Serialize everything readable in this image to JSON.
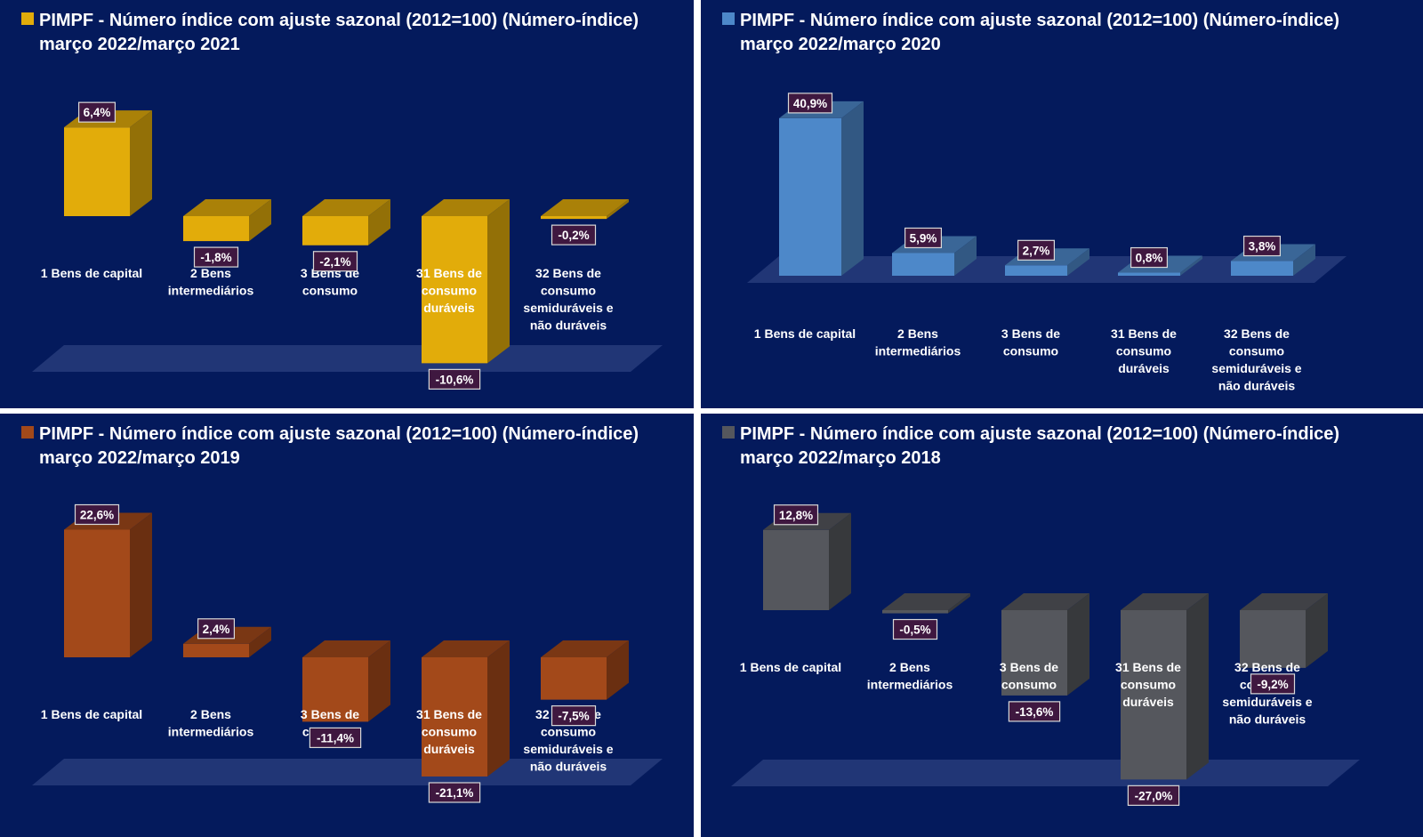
{
  "chart_data": [
    {
      "type": "bar",
      "panel": "top-left",
      "title_line1": "PIMPF - Número índice com ajuste sazonal (2012=100) (Número-índice)",
      "title_line2": "março 2022/março 2021",
      "color": "#e2ac0a",
      "categories": [
        [
          "1 Bens de capital"
        ],
        [
          "2 Bens",
          "intermediários"
        ],
        [
          "3 Bens de",
          "consumo"
        ],
        [
          "31 Bens de",
          "consumo",
          "duráveis"
        ],
        [
          "32 Bens de",
          "consumo",
          "semiduráveis e",
          "não duráveis"
        ]
      ],
      "values": [
        6.4,
        -1.8,
        -2.1,
        -10.6,
        -0.2
      ],
      "labels": [
        "6,4%",
        "-1,8%",
        "-2,1%",
        "-10,6%",
        "-0,2%"
      ]
    },
    {
      "type": "bar",
      "panel": "top-right",
      "title_line1": "PIMPF - Número índice com ajuste sazonal (2012=100) (Número-índice)",
      "title_line2": "março 2022/março 2020",
      "color": "#4d88c9",
      "categories": [
        [
          "1 Bens de capital"
        ],
        [
          "2 Bens",
          "intermediários"
        ],
        [
          "3 Bens de",
          "consumo"
        ],
        [
          "31 Bens de",
          "consumo",
          "duráveis"
        ],
        [
          "32 Bens de",
          "consumo",
          "semiduráveis e",
          "não duráveis"
        ]
      ],
      "values": [
        40.9,
        5.9,
        2.7,
        0.8,
        3.8
      ],
      "labels": [
        "40,9%",
        "5,9%",
        "2,7%",
        "0,8%",
        "3,8%"
      ]
    },
    {
      "type": "bar",
      "panel": "bottom-left",
      "title_line1": "PIMPF - Número índice com ajuste sazonal (2012=100) (Número-índice)",
      "title_line2": "março 2022/março 2019",
      "color": "#a3491a",
      "categories": [
        [
          "1 Bens de capital"
        ],
        [
          "2 Bens",
          "intermediários"
        ],
        [
          "3 Bens de",
          "consumo"
        ],
        [
          "31 Bens de",
          "consumo",
          "duráveis"
        ],
        [
          "32 Bens de",
          "consumo",
          "semiduráveis e",
          "não duráveis"
        ]
      ],
      "values": [
        22.6,
        2.4,
        -11.4,
        -21.1,
        -7.5
      ],
      "labels": [
        "22,6%",
        "2,4%",
        "-11,4%",
        "-21,1%",
        "-7,5%"
      ]
    },
    {
      "type": "bar",
      "panel": "bottom-right",
      "title_line1": "PIMPF - Número índice com ajuste sazonal (2012=100) (Número-índice)",
      "title_line2": "março 2022/março 2018",
      "color": "#55575d",
      "categories": [
        [
          "1 Bens de capital"
        ],
        [
          "2 Bens",
          "intermediários"
        ],
        [
          "3 Bens de",
          "consumo"
        ],
        [
          "31 Bens de",
          "consumo",
          "duráveis"
        ],
        [
          "32 Bens de",
          "consumo",
          "semiduráveis e",
          "não duráveis"
        ]
      ],
      "values": [
        12.8,
        -0.5,
        -13.6,
        -27.0,
        -9.2
      ],
      "labels": [
        "12,8%",
        "-0,5%",
        "-13,6%",
        "-27,0%",
        "-9,2%"
      ]
    }
  ]
}
